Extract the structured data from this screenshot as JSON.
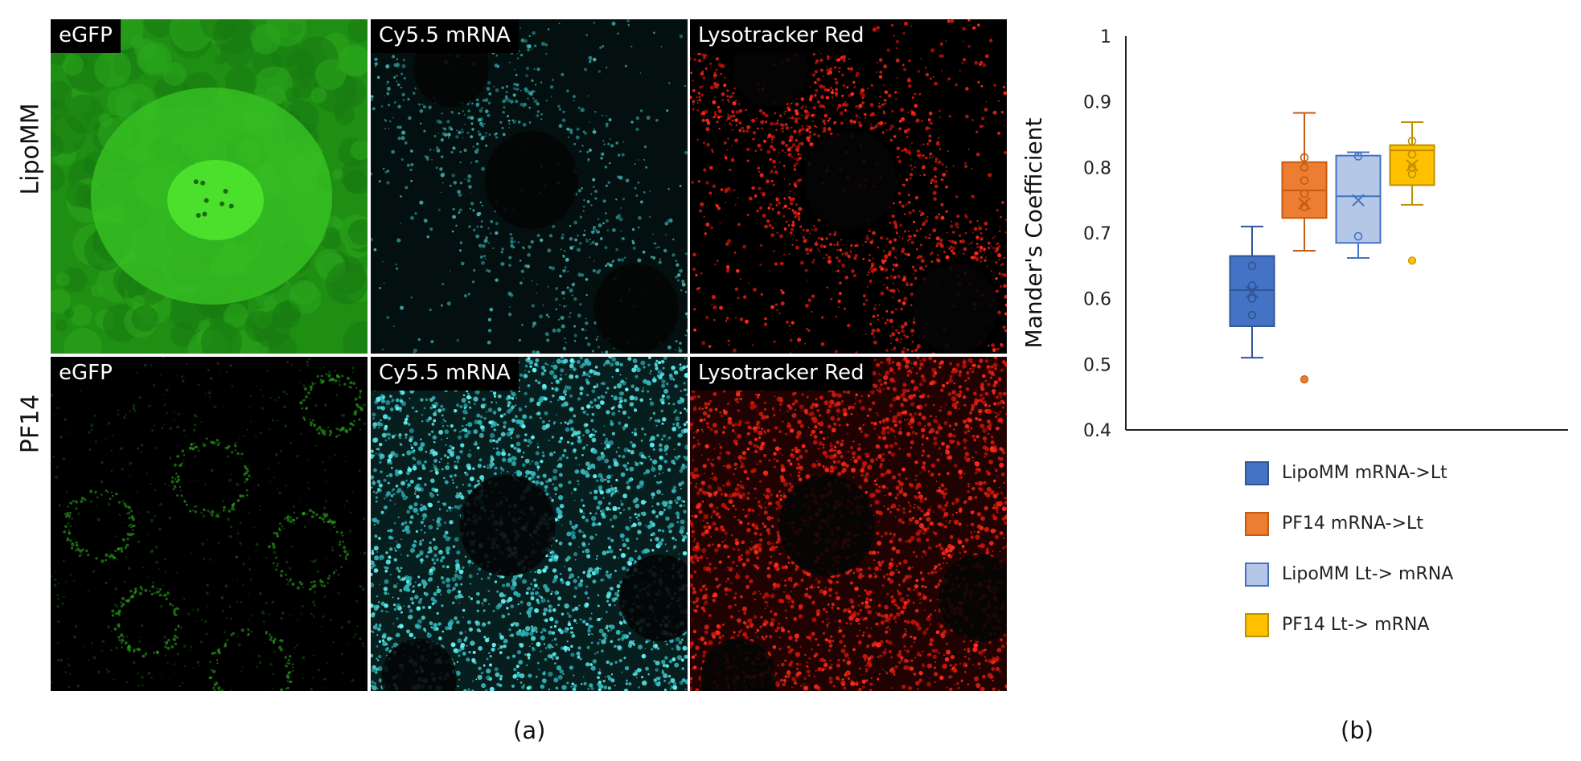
{
  "figure": {
    "rows": [
      {
        "label": "LipoMM",
        "panels": [
          {
            "label": "eGFP",
            "channel": "green",
            "texture": "bright-diffuse"
          },
          {
            "label": "Cy5.5 mRNA",
            "channel": "cyan",
            "texture": "sparse-puncta"
          },
          {
            "label": "Lysotracker Red",
            "channel": "red",
            "texture": "perinuclear-puncta"
          }
        ]
      },
      {
        "label": "PF14",
        "panels": [
          {
            "label": "eGFP",
            "channel": "green",
            "texture": "dim-rings"
          },
          {
            "label": "Cy5.5 mRNA",
            "channel": "cyan",
            "texture": "dense-puncta"
          },
          {
            "label": "Lysotracker Red",
            "channel": "red",
            "texture": "dense-puncta"
          }
        ]
      }
    ],
    "caption_a": "(a)",
    "caption_b": "(b)"
  },
  "chart_data": {
    "type": "box",
    "ylabel": "Mander's Coefficient",
    "ylim": [
      0.4,
      1.0
    ],
    "yticks": [
      "0.4",
      "0.5",
      "0.6",
      "0.7",
      "0.8",
      "0.9",
      "1"
    ],
    "grid": false,
    "legend_position": "bottom",
    "series": [
      {
        "name": "LipoMM mRNA->Lt",
        "color": "#4472c4",
        "fill": "#4472c4",
        "stroke": "#2f5597",
        "min": 0.51,
        "q1": 0.558,
        "median": 0.613,
        "q3": 0.665,
        "max": 0.71,
        "mean": 0.61,
        "points": [
          0.65,
          0.62,
          0.6,
          0.575
        ],
        "outliers": []
      },
      {
        "name": "PF14 mRNA->Lt",
        "color": "#ed7d31",
        "fill": "#ed7d31",
        "stroke": "#c55a11",
        "min": 0.673,
        "q1": 0.723,
        "median": 0.765,
        "q3": 0.808,
        "max": 0.883,
        "mean": 0.745,
        "points": [
          0.815,
          0.8,
          0.78,
          0.76,
          0.74
        ],
        "outliers": [
          0.477
        ]
      },
      {
        "name": "LipoMM Lt-> mRNA",
        "color": "#b4c7e7",
        "fill": "#b4c7e7",
        "stroke": "#4472c4",
        "min": 0.662,
        "q1": 0.685,
        "median": 0.756,
        "q3": 0.818,
        "max": 0.823,
        "mean": 0.75,
        "points": [
          0.817,
          0.695
        ],
        "outliers": []
      },
      {
        "name": "PF14 Lt-> mRNA",
        "color": "#ffc000",
        "fill": "#ffc000",
        "stroke": "#bf9000",
        "min": 0.743,
        "q1": 0.773,
        "median": 0.826,
        "q3": 0.834,
        "max": 0.869,
        "mean": 0.803,
        "points": [
          0.84,
          0.82,
          0.8,
          0.79
        ],
        "outliers": [
          0.658
        ]
      }
    ]
  }
}
